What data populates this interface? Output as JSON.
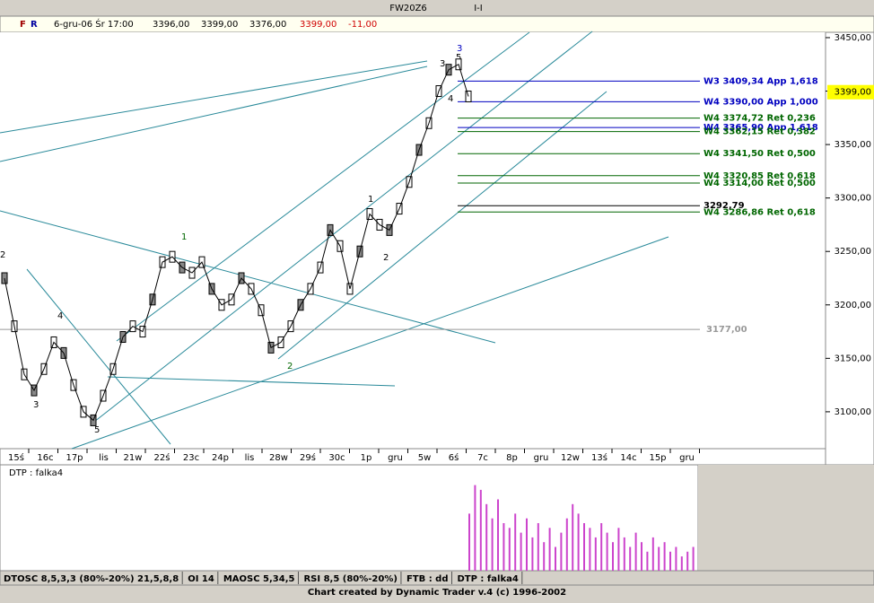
{
  "window": {
    "title": "FW20Z6",
    "subtitle": "I-I"
  },
  "info_bar": {
    "buttons": [
      "F",
      "R"
    ],
    "date": "6-gru-06 Śr 17:00",
    "open": "3396,00",
    "high": "3399,00",
    "low": "3376,00",
    "close": "3399,00",
    "change": "-11,00"
  },
  "chart_data": {
    "type": "line",
    "color": "#000000",
    "values": [
      3225,
      3180,
      3135,
      3120,
      3140,
      3165,
      3155,
      3125,
      3100,
      3092,
      3115,
      3140,
      3170,
      3180,
      3175,
      3205,
      3240,
      3245,
      3235,
      3230,
      3240,
      3215,
      3200,
      3205,
      3225,
      3215,
      3195,
      3160,
      3165,
      3180,
      3200,
      3215,
      3235,
      3270,
      3255,
      3215,
      3250,
      3285,
      3275,
      3270,
      3290,
      3315,
      3345,
      3370,
      3400,
      3420,
      3425,
      3395
    ],
    "ylim": [
      3065.5,
      3455
    ],
    "yticks": [
      {
        "value": 3450,
        "label": "3450,00"
      },
      {
        "value": 3400,
        "label": "3400,00"
      },
      {
        "value": 3350,
        "label": "3350,00"
      },
      {
        "value": 3300,
        "label": "3300,00"
      },
      {
        "value": 3250,
        "label": "3250,00"
      },
      {
        "value": 3200,
        "label": "3200,00"
      },
      {
        "value": 3150,
        "label": "3150,00"
      },
      {
        "value": 3100,
        "label": "3100,00"
      }
    ],
    "current_price": {
      "value": 3399,
      "label": "3399,00"
    },
    "x_labels": [
      "15ś",
      "16c",
      "17p",
      "lis",
      "21w",
      "22ś",
      "23c",
      "24p",
      "lis",
      "28w",
      "29ś",
      "30c",
      "1p",
      "gru",
      "5w",
      "6ś",
      "7c",
      "8p",
      "gru",
      "12w",
      "13ś",
      "14c",
      "15p",
      "gru"
    ],
    "levels": [
      {
        "label": "W3 3409,34 App 1,618",
        "value": 3409.34,
        "color": "#0000c0"
      },
      {
        "label": "W4 3390,00 App 1,000",
        "value": 3390,
        "color": "#0000c0"
      },
      {
        "label": "W4 3374,72 Ret 0,236",
        "value": 3374.72,
        "color": "#006600"
      },
      {
        "label": "W4 3365,90 App 1,618",
        "value": 3365.9,
        "color": "#0000c0"
      },
      {
        "label": "W4 3362,15 Ret 0,382",
        "value": 3362.15,
        "color": "#006600"
      },
      {
        "label": "W4 3341,50 Ret 0,500",
        "value": 3341.5,
        "color": "#006600"
      },
      {
        "label": "W4 3320,85 Ret 0,618",
        "value": 3320.85,
        "color": "#006600"
      },
      {
        "label": "W4 3314,00 Ret 0,500",
        "value": 3314,
        "color": "#006600"
      },
      {
        "label": "3292,79",
        "value": 3292.79,
        "color": "#000000"
      },
      {
        "label": "W4 3286,86 Ret 0,618",
        "value": 3286.86,
        "color": "#006600"
      },
      {
        "label": "3177,00",
        "value": 3177,
        "color": "#999999"
      }
    ],
    "wave_labels": [
      "2",
      "3",
      "4",
      "5",
      "1",
      "2",
      "1",
      "2",
      "3",
      "4",
      "5",
      "3"
    ],
    "indicator": {
      "title": "DTP : falka4",
      "color": "#cc44cc",
      "ylim": [
        0,
        100
      ],
      "values": [
        60,
        90,
        85,
        70,
        55,
        75,
        50,
        45,
        60,
        40,
        55,
        35,
        50,
        30,
        45,
        25,
        40,
        55,
        70,
        60,
        50,
        45,
        35,
        50,
        40,
        30,
        45,
        35,
        25,
        40,
        30,
        20,
        35,
        25,
        30,
        20,
        25,
        15,
        20,
        25
      ]
    }
  },
  "tabs": [
    "DTOSC 8,5,3,3 (80%-20%) 21,5,8,8",
    "OI 14",
    "MAOSC 5,34,5",
    "RSI 8,5 (80%-20%)",
    "FTB : dd",
    "DTP : falka4"
  ],
  "footer": "Chart created by Dynamic Trader v.4  (c) 1996-2002"
}
